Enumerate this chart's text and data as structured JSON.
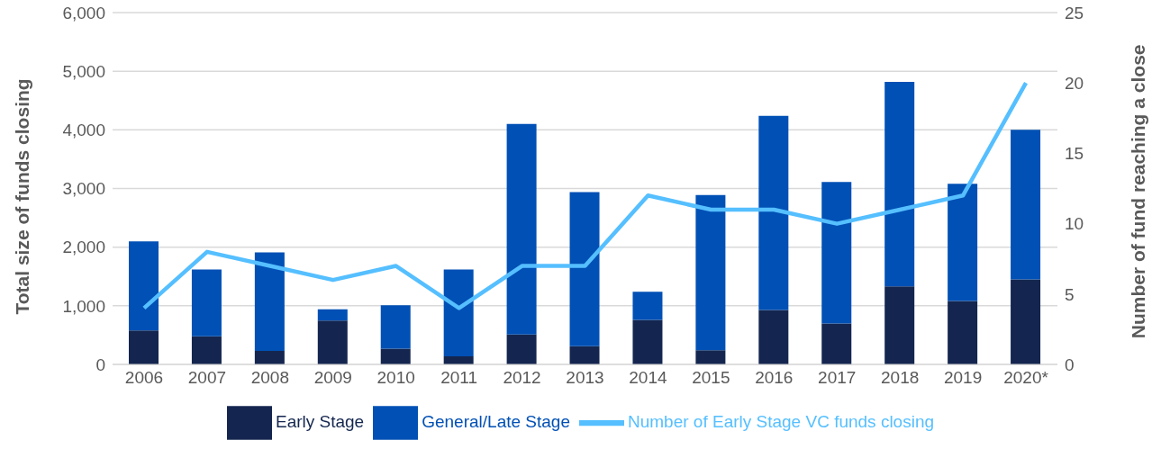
{
  "chart_data": {
    "type": "bar",
    "stacked": true,
    "categories": [
      "2006",
      "2007",
      "2008",
      "2009",
      "2010",
      "2011",
      "2012",
      "2013",
      "2014",
      "2015",
      "2016",
      "2017",
      "2018",
      "2019",
      "2020*"
    ],
    "ylabel": "Total size of funds closing",
    "y2label": "Number of fund reaching a close",
    "series": [
      {
        "name": "Early Stage",
        "color": "#14264f",
        "values": [
          580,
          480,
          230,
          750,
          270,
          140,
          510,
          310,
          760,
          240,
          930,
          700,
          1330,
          1080,
          1450
        ]
      },
      {
        "name": "General/Late Stage",
        "color": "#0050b5",
        "values": [
          1520,
          1140,
          1680,
          190,
          740,
          1480,
          3590,
          2630,
          480,
          2650,
          3310,
          2410,
          3490,
          2000,
          2550
        ]
      },
      {
        "name": "Number of Early Stage VC funds closing",
        "type": "line",
        "axis": "y2",
        "color": "#55bfff",
        "values": [
          4,
          8,
          7,
          6,
          7,
          4,
          7,
          7,
          12,
          11,
          11,
          10,
          11,
          12,
          20
        ]
      }
    ],
    "ylim": [
      0,
      6000
    ],
    "yticks": [
      0,
      {
        "value": 1000,
        "label": "1,000"
      },
      {
        "value": 2000,
        "label": "2,000"
      },
      {
        "value": 3000,
        "label": "3,000"
      },
      {
        "value": 4000,
        "label": "4,000"
      },
      {
        "value": 5000,
        "label": "5,000"
      },
      {
        "value": 6000,
        "label": "6,000"
      }
    ],
    "y2lim": [
      0,
      25
    ],
    "y2ticks": [
      0,
      5,
      10,
      15,
      20,
      25
    ],
    "grid": "y",
    "legend": "bottom",
    "marker": "none"
  }
}
